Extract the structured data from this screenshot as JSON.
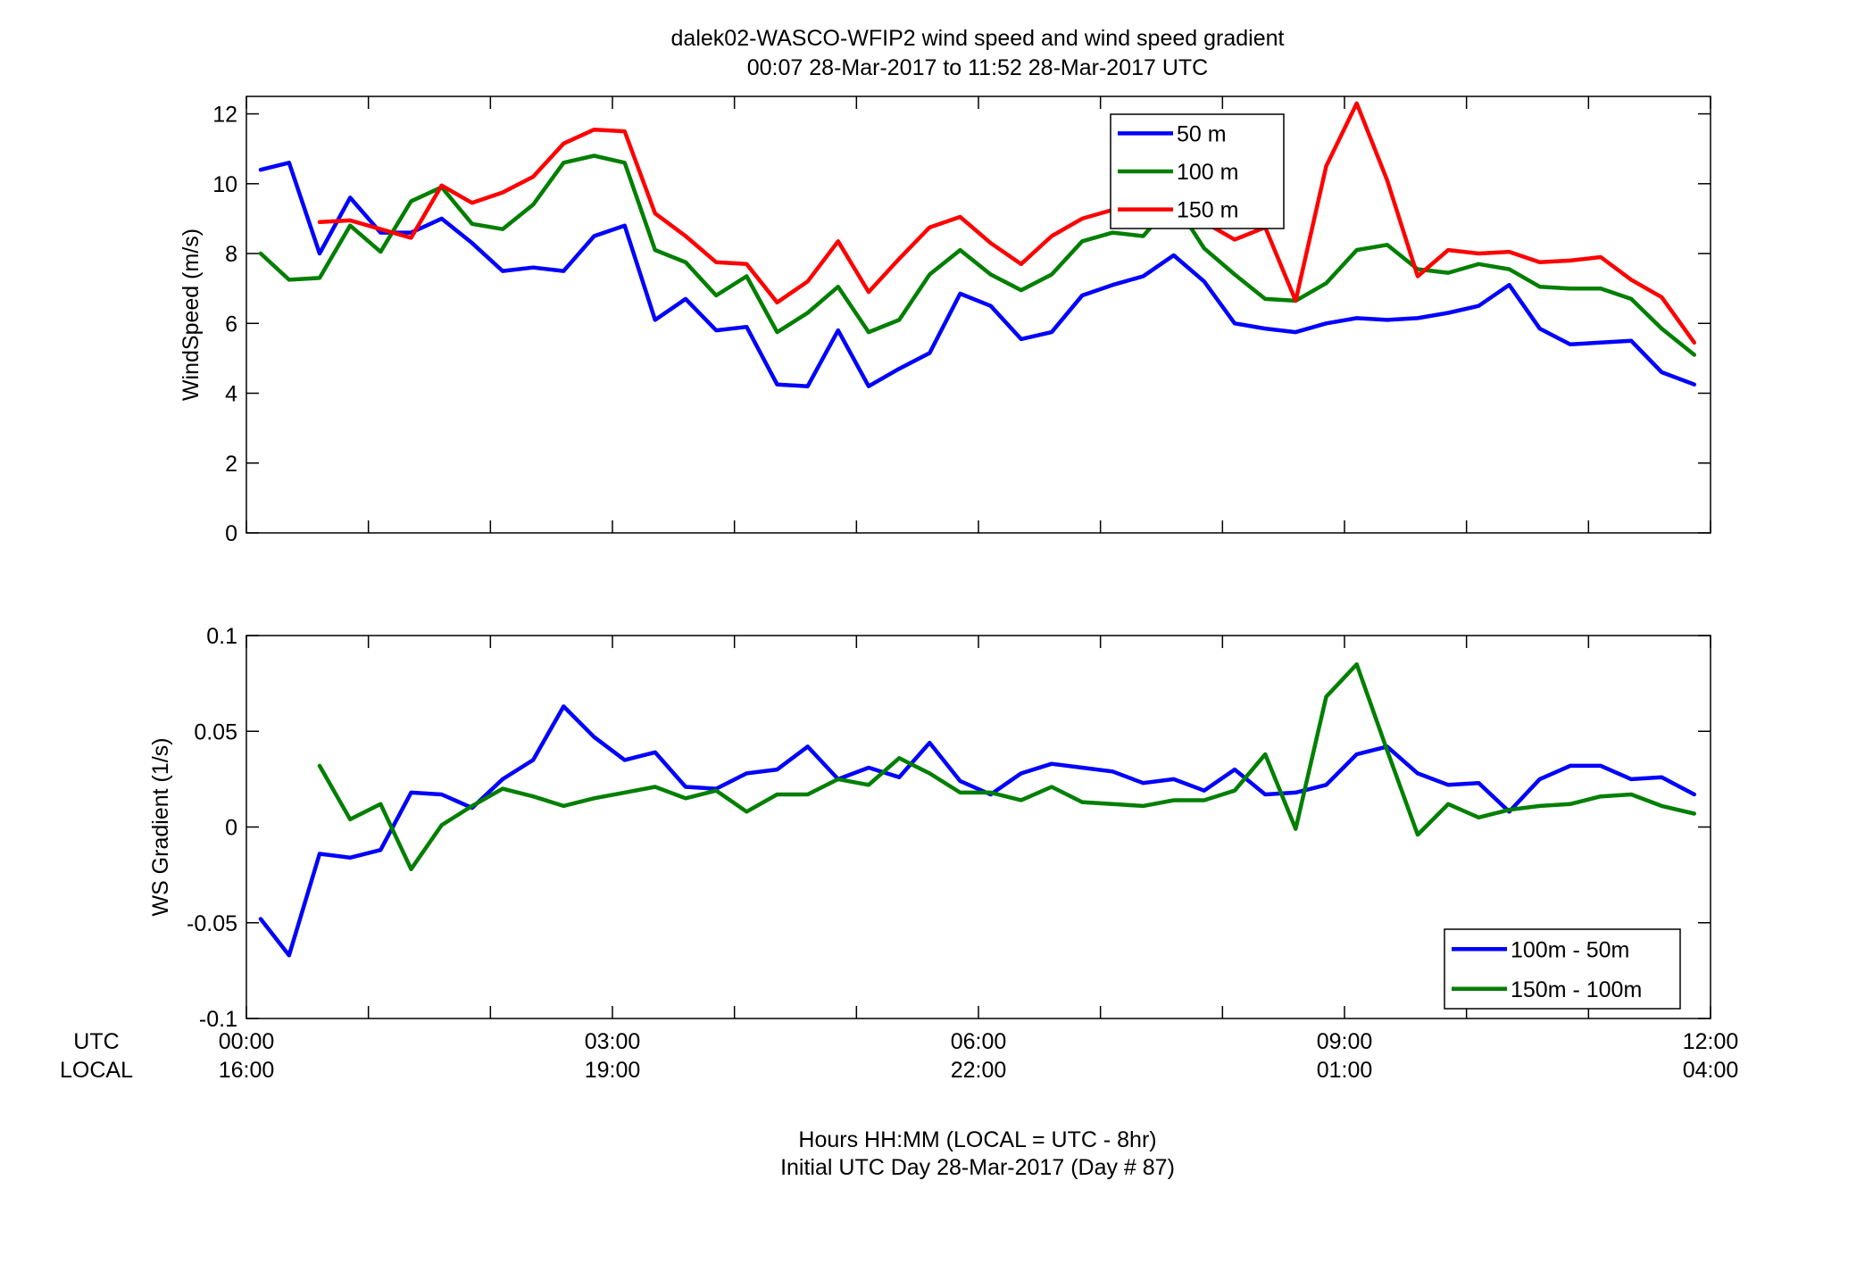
{
  "title": {
    "line1": "dalek02-WASCO-WFIP2  wind speed and wind speed gradient",
    "line2": "00:07 28-Mar-2017 to 11:52 28-Mar-2017  UTC"
  },
  "xaxis": {
    "utc_row_label": "UTC",
    "local_row_label": "LOCAL",
    "utc_ticks": [
      "00:00",
      "03:00",
      "06:00",
      "09:00",
      "12:00"
    ],
    "local_ticks": [
      "16:00",
      "19:00",
      "22:00",
      "01:00",
      "04:00"
    ],
    "label_line1": "Hours HH:MM  (LOCAL = UTC - 8hr)",
    "label_line2": "Initial UTC Day 28-Mar-2017 (Day # 87)"
  },
  "colors": {
    "blue": "#0000ff",
    "green": "#007f00",
    "red": "#ff0000"
  },
  "chart_data": [
    {
      "type": "line",
      "ylabel": "WindSpeed (m/s)",
      "xlim": [
        0,
        12
      ],
      "ylim": [
        0,
        12.5
      ],
      "yticks": [
        0,
        2,
        4,
        6,
        8,
        10,
        12
      ],
      "ytick_labels": [
        "0",
        "2",
        "4",
        "6",
        "8",
        "10",
        "12"
      ],
      "legend_position": "top-center",
      "x": [
        0.117,
        0.35,
        0.6,
        0.85,
        1.1,
        1.35,
        1.6,
        1.85,
        2.1,
        2.35,
        2.6,
        2.85,
        3.1,
        3.35,
        3.6,
        3.85,
        4.1,
        4.35,
        4.6,
        4.85,
        5.1,
        5.35,
        5.6,
        5.85,
        6.1,
        6.35,
        6.6,
        6.85,
        7.1,
        7.35,
        7.6,
        7.85,
        8.1,
        8.35,
        8.6,
        8.85,
        9.1,
        9.35,
        9.6,
        9.85,
        10.1,
        10.35,
        10.6,
        10.85,
        11.1,
        11.35,
        11.6,
        11.867
      ],
      "series": [
        {
          "name": "50 m",
          "color": "#0000ff",
          "values": [
            10.4,
            10.6,
            8.0,
            9.6,
            8.6,
            8.6,
            9.0,
            8.3,
            7.5,
            7.6,
            7.5,
            8.5,
            8.8,
            6.1,
            6.7,
            5.8,
            5.9,
            4.25,
            4.2,
            5.8,
            4.2,
            4.7,
            5.15,
            6.85,
            6.5,
            5.55,
            5.75,
            6.8,
            7.1,
            7.35,
            7.95,
            7.2,
            6.0,
            5.85,
            5.75,
            6.0,
            6.15,
            6.1,
            6.15,
            6.3,
            6.5,
            7.1,
            5.85,
            5.4,
            5.45,
            5.5,
            4.6,
            4.25
          ]
        },
        {
          "name": "100 m",
          "color": "#007f00",
          "values": [
            8.0,
            7.25,
            7.3,
            8.8,
            8.05,
            9.5,
            9.9,
            8.85,
            8.7,
            9.4,
            10.6,
            10.8,
            10.6,
            8.1,
            7.75,
            6.8,
            7.35,
            5.75,
            6.3,
            7.05,
            5.75,
            6.1,
            7.4,
            8.1,
            7.4,
            6.95,
            7.4,
            8.35,
            8.6,
            8.5,
            9.5,
            8.15,
            7.4,
            6.7,
            6.65,
            7.15,
            8.1,
            8.25,
            7.55,
            7.45,
            7.7,
            7.55,
            7.05,
            7.0,
            7.0,
            6.7,
            5.85,
            5.1
          ]
        },
        {
          "name": "150 m",
          "color": "#ff0000",
          "values": [
            null,
            null,
            8.9,
            8.95,
            8.7,
            8.45,
            9.95,
            9.45,
            9.75,
            10.2,
            11.15,
            11.55,
            11.5,
            9.15,
            8.5,
            7.75,
            7.7,
            6.6,
            7.2,
            8.35,
            6.9,
            7.85,
            8.75,
            9.05,
            8.3,
            7.7,
            8.5,
            9.0,
            9.25,
            9.45,
            9.5,
            8.9,
            8.4,
            8.75,
            6.65,
            10.5,
            12.3,
            10.1,
            7.35,
            8.1,
            8.0,
            8.05,
            7.75,
            7.8,
            7.9,
            7.25,
            6.75,
            5.45
          ]
        }
      ]
    },
    {
      "type": "line",
      "ylabel": "WS Gradient (1/s)",
      "xlim": [
        0,
        12
      ],
      "ylim": [
        -0.1,
        0.1
      ],
      "yticks": [
        -0.1,
        -0.05,
        0,
        0.05,
        0.1
      ],
      "ytick_labels": [
        "-0.1",
        "-0.05",
        "0",
        "0.05",
        "0.1"
      ],
      "legend_position": "bottom-right",
      "x": [
        0.117,
        0.35,
        0.6,
        0.85,
        1.1,
        1.35,
        1.6,
        1.85,
        2.1,
        2.35,
        2.6,
        2.85,
        3.1,
        3.35,
        3.6,
        3.85,
        4.1,
        4.35,
        4.6,
        4.85,
        5.1,
        5.35,
        5.6,
        5.85,
        6.1,
        6.35,
        6.6,
        6.85,
        7.1,
        7.35,
        7.6,
        7.85,
        8.1,
        8.35,
        8.6,
        8.85,
        9.1,
        9.35,
        9.6,
        9.85,
        10.1,
        10.35,
        10.6,
        10.85,
        11.1,
        11.35,
        11.6,
        11.867
      ],
      "series": [
        {
          "name": "100m - 50m",
          "color": "#0000ff",
          "values": [
            -0.048,
            -0.067,
            -0.014,
            -0.016,
            -0.012,
            0.018,
            0.017,
            0.01,
            0.025,
            0.035,
            0.063,
            0.047,
            0.035,
            0.039,
            0.021,
            0.02,
            0.028,
            0.03,
            0.042,
            0.025,
            0.031,
            0.026,
            0.044,
            0.024,
            0.017,
            0.028,
            0.033,
            0.031,
            0.029,
            0.023,
            0.025,
            0.019,
            0.03,
            0.017,
            0.018,
            0.022,
            0.038,
            0.042,
            0.028,
            0.022,
            0.023,
            0.008,
            0.025,
            0.032,
            0.032,
            0.025,
            0.026,
            0.017
          ]
        },
        {
          "name": "150m - 100m",
          "color": "#007f00",
          "values": [
            null,
            null,
            0.032,
            0.004,
            0.012,
            -0.022,
            0.001,
            0.011,
            0.02,
            0.016,
            0.011,
            0.015,
            0.018,
            0.021,
            0.015,
            0.019,
            0.008,
            0.017,
            0.017,
            0.025,
            0.022,
            0.036,
            0.028,
            0.018,
            0.018,
            0.014,
            0.021,
            0.013,
            0.012,
            0.011,
            0.014,
            0.014,
            0.019,
            0.038,
            -0.001,
            0.068,
            0.085,
            0.04,
            -0.004,
            0.012,
            0.005,
            0.009,
            0.011,
            0.012,
            0.016,
            0.017,
            0.011,
            0.007
          ]
        }
      ]
    }
  ]
}
